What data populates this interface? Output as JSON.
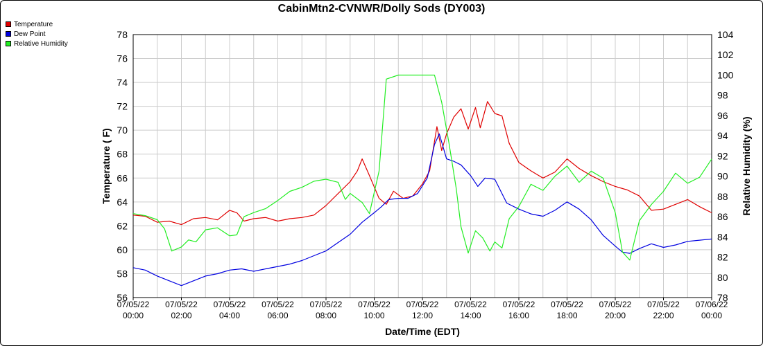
{
  "chart_data": {
    "type": "line",
    "title": "CabinMtn2-CVNWR/Dolly Sods (DY003)",
    "xlabel": "Date/Time (EDT)",
    "ylabel_left": "Temperature ( F)",
    "ylabel_right": "Relative Humidity (%)",
    "ylim_left": [
      56,
      78
    ],
    "yticks_left": [
      "56",
      "58",
      "60",
      "62",
      "64",
      "66",
      "68",
      "70",
      "72",
      "74",
      "76",
      "78"
    ],
    "ylim_right": [
      78,
      104
    ],
    "yticks_right": [
      "78",
      "80",
      "82",
      "84",
      "86",
      "88",
      "90",
      "92",
      "94",
      "96",
      "98",
      "100",
      "102",
      "104"
    ],
    "x_range_hours": [
      0,
      24
    ],
    "xticks": [
      {
        "date": "07/05/22",
        "time": "00:00"
      },
      {
        "date": "07/05/22",
        "time": "02:00"
      },
      {
        "date": "07/05/22",
        "time": "04:00"
      },
      {
        "date": "07/05/22",
        "time": "06:00"
      },
      {
        "date": "07/05/22",
        "time": "08:00"
      },
      {
        "date": "07/05/22",
        "time": "10:00"
      },
      {
        "date": "07/05/22",
        "time": "12:00"
      },
      {
        "date": "07/05/22",
        "time": "14:00"
      },
      {
        "date": "07/05/22",
        "time": "16:00"
      },
      {
        "date": "07/05/22",
        "time": "18:00"
      },
      {
        "date": "07/05/22",
        "time": "20:00"
      },
      {
        "date": "07/05/22",
        "time": "22:00"
      },
      {
        "date": "07/06/22",
        "time": "00:00"
      }
    ],
    "grid": true,
    "legend_position": "top-left",
    "series": [
      {
        "name": "Temperature",
        "axis": "left",
        "color": "#e00000",
        "points": [
          [
            0,
            62.9
          ],
          [
            0.5,
            62.8
          ],
          [
            1,
            62.3
          ],
          [
            1.5,
            62.4
          ],
          [
            2,
            62.1
          ],
          [
            2.5,
            62.6
          ],
          [
            3,
            62.7
          ],
          [
            3.5,
            62.5
          ],
          [
            4,
            63.3
          ],
          [
            4.3,
            63.1
          ],
          [
            4.6,
            62.4
          ],
          [
            5,
            62.6
          ],
          [
            5.5,
            62.7
          ],
          [
            6,
            62.4
          ],
          [
            6.5,
            62.6
          ],
          [
            7,
            62.7
          ],
          [
            7.5,
            62.9
          ],
          [
            8,
            63.7
          ],
          [
            8.5,
            64.7
          ],
          [
            9,
            65.7
          ],
          [
            9.3,
            66.6
          ],
          [
            9.5,
            67.6
          ],
          [
            9.8,
            66.2
          ],
          [
            10.2,
            64.3
          ],
          [
            10.5,
            63.8
          ],
          [
            10.8,
            64.9
          ],
          [
            11.2,
            64.3
          ],
          [
            11.6,
            64.5
          ],
          [
            12,
            65.5
          ],
          [
            12.3,
            66.6
          ],
          [
            12.6,
            70.3
          ],
          [
            12.8,
            68.3
          ],
          [
            13,
            69.7
          ],
          [
            13.3,
            71.1
          ],
          [
            13.6,
            71.8
          ],
          [
            13.9,
            70.1
          ],
          [
            14.2,
            71.9
          ],
          [
            14.4,
            70.2
          ],
          [
            14.7,
            72.4
          ],
          [
            15,
            71.4
          ],
          [
            15.3,
            71.2
          ],
          [
            15.6,
            68.9
          ],
          [
            16,
            67.3
          ],
          [
            16.5,
            66.6
          ],
          [
            17,
            66.0
          ],
          [
            17.5,
            66.5
          ],
          [
            18,
            67.6
          ],
          [
            18.5,
            66.8
          ],
          [
            19,
            66.2
          ],
          [
            19.5,
            65.7
          ],
          [
            20,
            65.3
          ],
          [
            20.5,
            65.0
          ],
          [
            21,
            64.5
          ],
          [
            21.5,
            63.3
          ],
          [
            22,
            63.4
          ],
          [
            22.5,
            63.8
          ],
          [
            23,
            64.2
          ],
          [
            23.5,
            63.6
          ],
          [
            24,
            63.1
          ]
        ]
      },
      {
        "name": "Dew Point",
        "axis": "left",
        "color": "#0000e0",
        "points": [
          [
            0,
            58.5
          ],
          [
            0.5,
            58.3
          ],
          [
            1,
            57.8
          ],
          [
            1.5,
            57.4
          ],
          [
            2,
            57.0
          ],
          [
            2.5,
            57.4
          ],
          [
            3,
            57.8
          ],
          [
            3.5,
            58.0
          ],
          [
            4,
            58.3
          ],
          [
            4.5,
            58.4
          ],
          [
            5,
            58.2
          ],
          [
            5.5,
            58.4
          ],
          [
            6,
            58.6
          ],
          [
            6.5,
            58.8
          ],
          [
            7,
            59.1
          ],
          [
            7.5,
            59.5
          ],
          [
            8,
            59.9
          ],
          [
            8.5,
            60.6
          ],
          [
            9,
            61.3
          ],
          [
            9.5,
            62.3
          ],
          [
            10,
            63.1
          ],
          [
            10.3,
            63.6
          ],
          [
            10.6,
            64.2
          ],
          [
            11,
            64.3
          ],
          [
            11.4,
            64.3
          ],
          [
            11.8,
            64.7
          ],
          [
            12.2,
            66.0
          ],
          [
            12.5,
            68.8
          ],
          [
            12.7,
            69.7
          ],
          [
            13,
            67.6
          ],
          [
            13.3,
            67.4
          ],
          [
            13.6,
            67.1
          ],
          [
            14,
            66.2
          ],
          [
            14.3,
            65.3
          ],
          [
            14.6,
            66.0
          ],
          [
            15,
            65.9
          ],
          [
            15.5,
            63.9
          ],
          [
            16,
            63.4
          ],
          [
            16.5,
            63.0
          ],
          [
            17,
            62.8
          ],
          [
            17.5,
            63.3
          ],
          [
            18,
            64.0
          ],
          [
            18.5,
            63.4
          ],
          [
            19,
            62.5
          ],
          [
            19.5,
            61.2
          ],
          [
            20,
            60.3
          ],
          [
            20.3,
            59.8
          ],
          [
            20.6,
            59.7
          ],
          [
            21,
            60.1
          ],
          [
            21.5,
            60.5
          ],
          [
            22,
            60.2
          ],
          [
            22.5,
            60.4
          ],
          [
            23,
            60.7
          ],
          [
            23.5,
            60.8
          ],
          [
            24,
            60.9
          ]
        ]
      },
      {
        "name": "Relative Humidity",
        "axis": "right",
        "color": "#22ee22",
        "points": [
          [
            0,
            86.3
          ],
          [
            0.5,
            86.1
          ],
          [
            1,
            85.7
          ],
          [
            1.3,
            84.8
          ],
          [
            1.6,
            82.6
          ],
          [
            2,
            83.0
          ],
          [
            2.3,
            83.7
          ],
          [
            2.6,
            83.5
          ],
          [
            3,
            84.7
          ],
          [
            3.5,
            84.9
          ],
          [
            4,
            84.1
          ],
          [
            4.3,
            84.2
          ],
          [
            4.6,
            86.0
          ],
          [
            5,
            86.4
          ],
          [
            5.5,
            86.8
          ],
          [
            6,
            87.6
          ],
          [
            6.5,
            88.5
          ],
          [
            7,
            88.9
          ],
          [
            7.5,
            89.5
          ],
          [
            8,
            89.7
          ],
          [
            8.5,
            89.4
          ],
          [
            8.8,
            87.7
          ],
          [
            9,
            88.3
          ],
          [
            9.5,
            87.4
          ],
          [
            9.8,
            86.3
          ],
          [
            10.2,
            90.5
          ],
          [
            10.5,
            99.6
          ],
          [
            11,
            100.0
          ],
          [
            12,
            100.0
          ],
          [
            12.5,
            100.0
          ],
          [
            12.8,
            97.3
          ],
          [
            13.1,
            93.3
          ],
          [
            13.4,
            88.8
          ],
          [
            13.6,
            85.0
          ],
          [
            13.9,
            82.4
          ],
          [
            14.2,
            84.6
          ],
          [
            14.5,
            83.9
          ],
          [
            14.8,
            82.6
          ],
          [
            15,
            83.5
          ],
          [
            15.3,
            82.9
          ],
          [
            15.6,
            85.8
          ],
          [
            16,
            87.0
          ],
          [
            16.5,
            89.2
          ],
          [
            17,
            88.6
          ],
          [
            17.5,
            90.0
          ],
          [
            18,
            91.0
          ],
          [
            18.5,
            89.4
          ],
          [
            19,
            90.5
          ],
          [
            19.5,
            89.8
          ],
          [
            20,
            86.4
          ],
          [
            20.3,
            82.5
          ],
          [
            20.6,
            81.7
          ],
          [
            21,
            85.6
          ],
          [
            21.5,
            87.2
          ],
          [
            22,
            88.5
          ],
          [
            22.5,
            90.3
          ],
          [
            23,
            89.3
          ],
          [
            23.5,
            89.9
          ],
          [
            24,
            91.7
          ]
        ]
      }
    ]
  }
}
